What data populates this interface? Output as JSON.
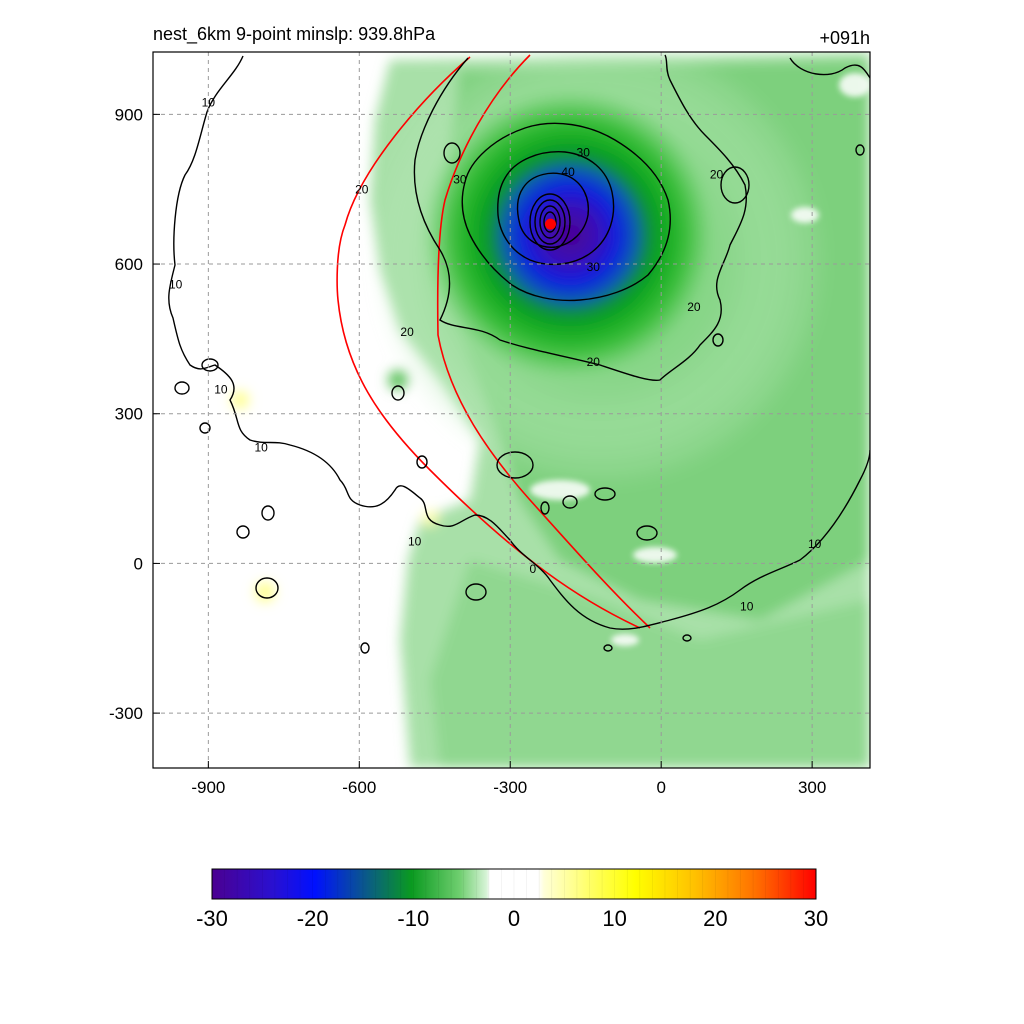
{
  "chart_data": {
    "type": "heatmap",
    "title_left": "nest_6km  9-point minslp: 939.8hPa",
    "title_right": "+091h",
    "xlabel": "",
    "ylabel": "",
    "xlim": [
      -1010,
      415
    ],
    "ylim": [
      -410,
      1025
    ],
    "xticks": [
      -900,
      -600,
      -300,
      0,
      300
    ],
    "yticks": [
      -300,
      0,
      300,
      600,
      900
    ],
    "grid": true,
    "colormap_bounds": [
      -30,
      30
    ],
    "colorbar_ticks": [
      -30,
      -20,
      -10,
      0,
      10,
      20,
      30
    ],
    "storm_center": {
      "x": -220,
      "y": 680,
      "marker_color": "#ff0000"
    },
    "contour_labels": [
      {
        "text": "10",
        "x": -900,
        "y": 920
      },
      {
        "text": "10",
        "x": -965,
        "y": 555
      },
      {
        "text": "10",
        "x": -875,
        "y": 345
      },
      {
        "text": "10",
        "x": -795,
        "y": 228
      },
      {
        "text": "10",
        "x": -490,
        "y": 40
      },
      {
        "text": "10",
        "x": 305,
        "y": 35
      },
      {
        "text": "10",
        "x": 170,
        "y": -90
      },
      {
        "text": "20",
        "x": -595,
        "y": 745
      },
      {
        "text": "20",
        "x": -505,
        "y": 460
      },
      {
        "text": "20",
        "x": -135,
        "y": 400
      },
      {
        "text": "20",
        "x": 65,
        "y": 510
      },
      {
        "text": "20",
        "x": 110,
        "y": 775
      },
      {
        "text": "30",
        "x": -400,
        "y": 765
      },
      {
        "text": "30",
        "x": -155,
        "y": 820
      },
      {
        "text": "30",
        "x": -135,
        "y": 590
      },
      {
        "text": "40",
        "x": -185,
        "y": 780
      },
      {
        "text": "0",
        "x": -255,
        "y": -15
      }
    ]
  }
}
